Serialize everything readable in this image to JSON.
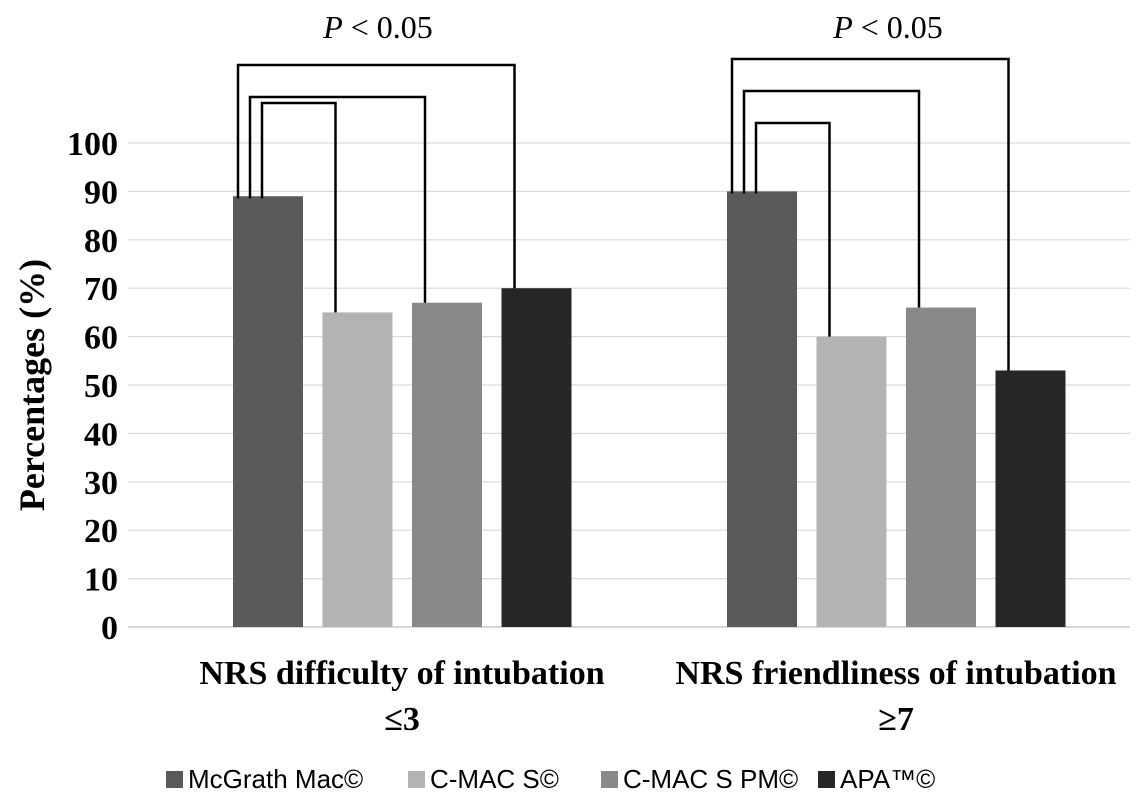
{
  "chart_data": {
    "type": "bar",
    "ylabel": "Percentages (%)",
    "xlabel": "",
    "ylim": [
      0,
      100
    ],
    "yticks": [
      0,
      10,
      20,
      30,
      40,
      50,
      60,
      70,
      80,
      90,
      100
    ],
    "grid": true,
    "legend_position": "bottom",
    "categories": [
      {
        "line1": "NRS difficulty of intubation",
        "line2": "≤3"
      },
      {
        "line1": "NRS friendliness of intubation",
        "line2": "≥7"
      }
    ],
    "series": [
      {
        "name": "McGrath Mac©",
        "color": "#595959",
        "values": [
          89,
          90
        ]
      },
      {
        "name": "C-MAC S©",
        "color": "#b3b3b3",
        "values": [
          65,
          60
        ]
      },
      {
        "name": "C-MAC S PM©",
        "color": "#898989",
        "values": [
          67,
          66
        ]
      },
      {
        "name": "APA™©",
        "color": "#262626",
        "values": [
          70,
          53
        ]
      }
    ],
    "annotations": [
      {
        "text": "P < 0.05",
        "category_index": 0
      },
      {
        "text": "P < 0.05",
        "category_index": 1
      }
    ],
    "significance_brackets": [
      {
        "category_index": 0,
        "from_series": 0,
        "to_series": [
          1,
          2,
          3
        ]
      },
      {
        "category_index": 1,
        "from_series": 0,
        "to_series": [
          1,
          2,
          3
        ]
      }
    ]
  }
}
